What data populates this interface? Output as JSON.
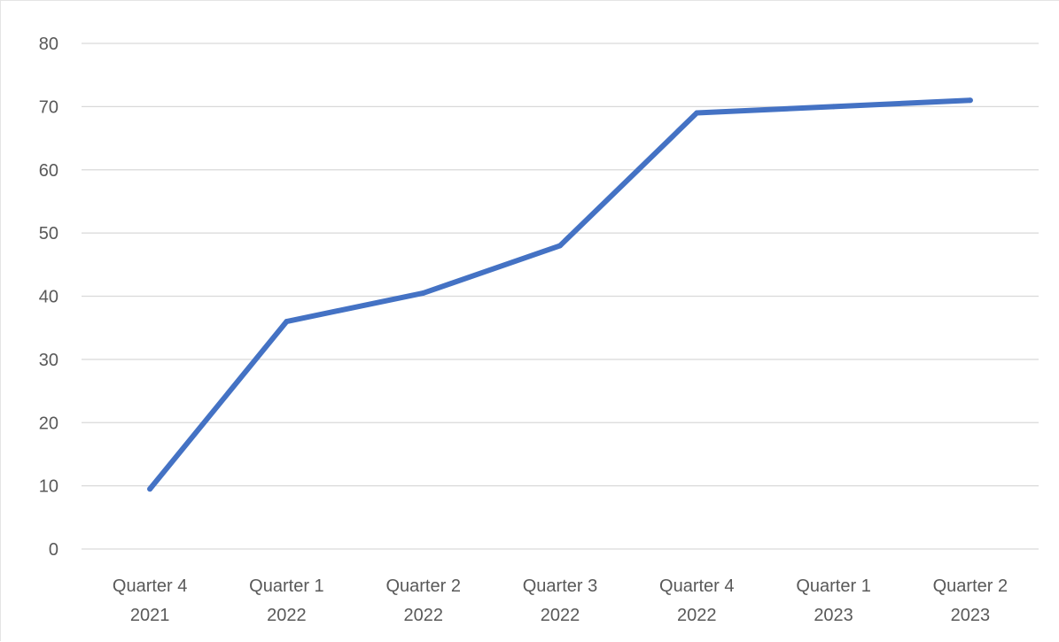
{
  "chart_data": {
    "type": "line",
    "title": "",
    "xlabel": "",
    "ylabel": "",
    "categories": [
      [
        "Quarter 4",
        "2021"
      ],
      [
        "Quarter 1",
        "2022"
      ],
      [
        "Quarter 2",
        "2022"
      ],
      [
        "Quarter 3",
        "2022"
      ],
      [
        "Quarter 4",
        "2022"
      ],
      [
        "Quarter 1",
        "2023"
      ],
      [
        "Quarter 2",
        "2023"
      ]
    ],
    "series": [
      {
        "color": "#4472c4",
        "values": [
          9.5,
          36,
          40.5,
          48,
          69,
          70,
          71
        ]
      }
    ],
    "ylim": [
      0,
      80
    ],
    "yticks": [
      "0",
      "10",
      "20",
      "30",
      "40",
      "50",
      "60",
      "70",
      "80"
    ],
    "grid": true,
    "legend": "none"
  }
}
